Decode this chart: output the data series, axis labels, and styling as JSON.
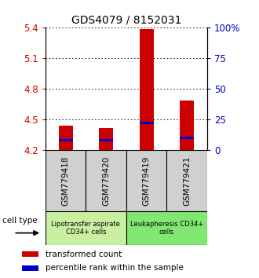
{
  "title": "GDS4079 / 8152031",
  "samples": [
    "GSM779418",
    "GSM779420",
    "GSM779419",
    "GSM779421"
  ],
  "bar_bottoms": [
    4.2,
    4.2,
    4.2,
    4.2
  ],
  "bar_tops": [
    4.44,
    4.42,
    5.39,
    4.69
  ],
  "blue_marks": [
    4.3,
    4.3,
    4.47,
    4.32
  ],
  "ylim_left": [
    4.2,
    5.4
  ],
  "yticks_left": [
    4.2,
    4.5,
    4.8,
    5.1,
    5.4
  ],
  "yticks_right": [
    0,
    25,
    50,
    75,
    100
  ],
  "ytick_labels_left": [
    "4.2",
    "4.5",
    "4.8",
    "5.1",
    "5.4"
  ],
  "ytick_labels_right": [
    "0",
    "25",
    "50",
    "75",
    "100%"
  ],
  "groups": [
    {
      "label": "Lipotransfer aspirate\nCD34+ cells",
      "col_indices": [
        0,
        1
      ],
      "color": "#c8f0a0"
    },
    {
      "label": "Leukapheresis CD34+\ncells",
      "col_indices": [
        2,
        3
      ],
      "color": "#80e870"
    }
  ],
  "bar_color": "#cc0000",
  "blue_color": "#0000cc",
  "label_color_left": "#cc0000",
  "label_color_right": "#0000bb",
  "cell_type_label": "cell type",
  "legend_red": "transformed count",
  "legend_blue": "percentile rank within the sample",
  "bar_width": 0.35,
  "sample_box_color": "#d0d0d0",
  "sample_box_edge": "#000000"
}
